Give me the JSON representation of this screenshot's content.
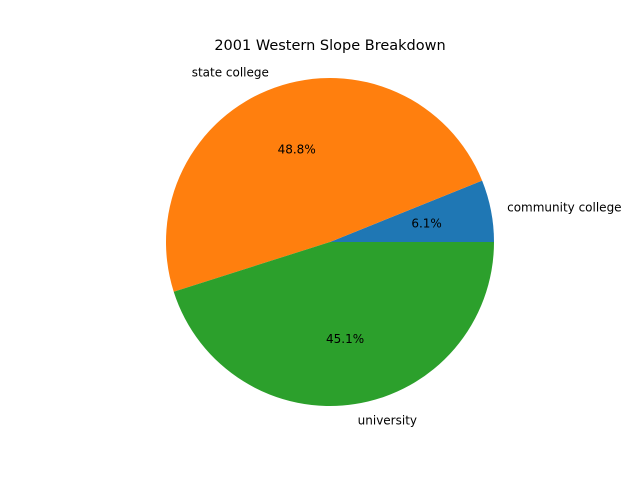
{
  "chart_data": {
    "type": "pie",
    "title": "2001 Western Slope Breakdown",
    "slices": [
      {
        "label": "community college",
        "percent": 6.1,
        "pct_label": "6.1%",
        "color": "#1f77b4"
      },
      {
        "label": "state college",
        "percent": 48.8,
        "pct_label": "48.8%",
        "color": "#ff7f0e"
      },
      {
        "label": "university",
        "percent": 45.1,
        "pct_label": "45.1%",
        "color": "#2ca02c"
      }
    ],
    "start_angle_deg": 0,
    "direction": "counterclockwise",
    "legend": "none"
  }
}
